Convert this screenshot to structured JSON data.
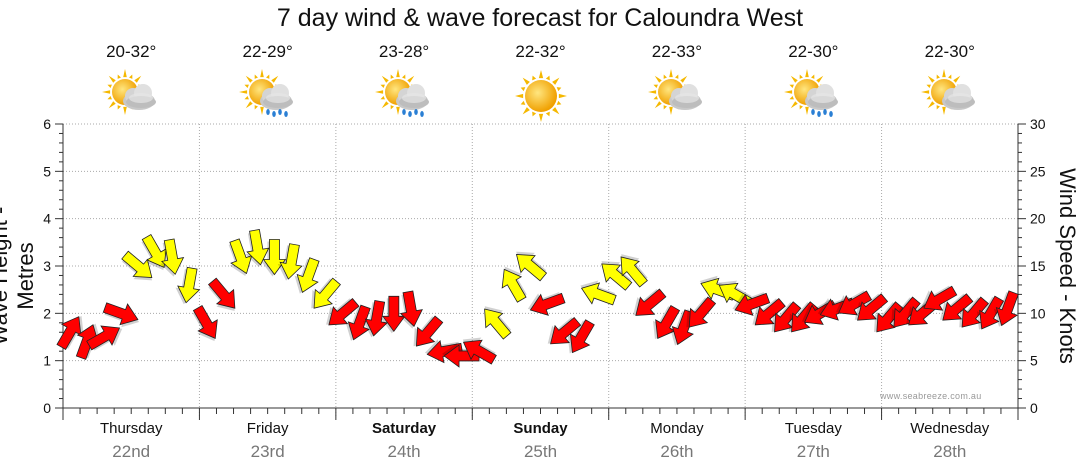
{
  "title": "7 day wind & wave forecast for Caloundra West",
  "credit": "www.seabreeze.com.au",
  "axes": {
    "left_label": "Wave Height - Metres",
    "right_label": "Wind Speed - Knots"
  },
  "days": [
    {
      "name": "Thursday",
      "date": "22nd",
      "temp": "20-32°",
      "icon": "sun-cloud-icon",
      "bold": false
    },
    {
      "name": "Friday",
      "date": "23rd",
      "temp": "22-29°",
      "icon": "sun-cloud-rain-icon",
      "bold": false
    },
    {
      "name": "Saturday",
      "date": "24th",
      "temp": "23-28°",
      "icon": "sun-cloud-rain-icon",
      "bold": true
    },
    {
      "name": "Sunday",
      "date": "25th",
      "temp": "22-32°",
      "icon": "sun-icon",
      "bold": true
    },
    {
      "name": "Monday",
      "date": "26th",
      "temp": "22-33°",
      "icon": "sun-cloud-icon",
      "bold": false
    },
    {
      "name": "Tuesday",
      "date": "27th",
      "temp": "22-30°",
      "icon": "sun-cloud-rain-icon",
      "bold": false
    },
    {
      "name": "Wednesday",
      "date": "28th",
      "temp": "22-30°",
      "icon": "sun-cloud-icon",
      "bold": false
    }
  ],
  "colors": {
    "onshore": "#ff0000",
    "offshore": "#ffff00",
    "arrow_outline": "#222222",
    "grid": "#aaaaaa"
  },
  "chart_data": {
    "type": "line",
    "x_unit": "hours since start of Thursday 22nd",
    "left_axis": {
      "label": "Wave Height - Metres",
      "min": 0,
      "max": 6,
      "ticks": [
        0,
        1,
        2,
        3,
        4,
        5,
        6
      ]
    },
    "right_axis": {
      "label": "Wind Speed - Knots",
      "min": 0,
      "max": 30,
      "ticks": [
        0,
        5,
        10,
        15,
        20,
        25,
        30
      ]
    },
    "grid": true,
    "series": [
      {
        "name": "",
        "axis": "right",
        "marker": "arrow",
        "x": [
          0,
          3,
          6,
          9,
          12,
          15,
          18,
          21,
          24,
          27,
          30,
          33,
          36,
          39,
          42,
          45,
          48,
          51,
          54,
          57,
          60,
          63,
          66,
          69,
          72,
          75,
          78,
          81,
          84,
          87,
          90,
          93,
          96,
          99,
          102,
          105,
          108,
          111,
          114,
          117,
          120,
          123,
          126,
          129,
          132,
          135,
          138,
          141,
          144,
          147,
          150,
          153,
          156,
          159,
          162,
          165
        ],
        "y": [
          8,
          7,
          7.5,
          10,
          15,
          16.5,
          16,
          13,
          9,
          12,
          16,
          17,
          16,
          15.5,
          14,
          12,
          10,
          9,
          9.5,
          10,
          10.5,
          8,
          6,
          5.5,
          6,
          9,
          13,
          15,
          11,
          8,
          7.5,
          12,
          14,
          14.5,
          11,
          9,
          8.5,
          10,
          12.5,
          12,
          11,
          10,
          9.5,
          9.5,
          10,
          10.5,
          11,
          10.5,
          9.5,
          10,
          10,
          11.5,
          10.5,
          10,
          10,
          10.5
        ],
        "direction_deg": [
          300,
          290,
          330,
          20,
          40,
          60,
          80,
          100,
          60,
          50,
          70,
          80,
          90,
          100,
          110,
          130,
          140,
          110,
          100,
          90,
          80,
          130,
          170,
          180,
          210,
          230,
          240,
          220,
          160,
          140,
          120,
          200,
          220,
          230,
          140,
          120,
          110,
          130,
          200,
          210,
          160,
          140,
          130,
          130,
          150,
          160,
          150,
          140,
          130,
          130,
          140,
          150,
          140,
          130,
          120,
          110
        ],
        "wind_type": [
          "onshore",
          "onshore",
          "onshore",
          "onshore",
          "offshore",
          "offshore",
          "offshore",
          "offshore",
          "onshore",
          "onshore",
          "offshore",
          "offshore",
          "offshore",
          "offshore",
          "offshore",
          "offshore",
          "onshore",
          "onshore",
          "onshore",
          "onshore",
          "onshore",
          "onshore",
          "onshore",
          "onshore",
          "onshore",
          "offshore",
          "offshore",
          "offshore",
          "onshore",
          "onshore",
          "onshore",
          "offshore",
          "offshore",
          "offshore",
          "onshore",
          "onshore",
          "onshore",
          "onshore",
          "offshore",
          "offshore",
          "onshore",
          "onshore",
          "onshore",
          "onshore",
          "onshore",
          "onshore",
          "onshore",
          "onshore",
          "onshore",
          "onshore",
          "onshore",
          "onshore",
          "onshore",
          "onshore",
          "onshore",
          "onshore"
        ]
      }
    ],
    "x_categories": [
      "Thursday 22nd",
      "Friday 23rd",
      "Saturday 24th",
      "Sunday 25th",
      "Monday 26th",
      "Tuesday 27th",
      "Wednesday 28th"
    ],
    "legend": "none"
  }
}
